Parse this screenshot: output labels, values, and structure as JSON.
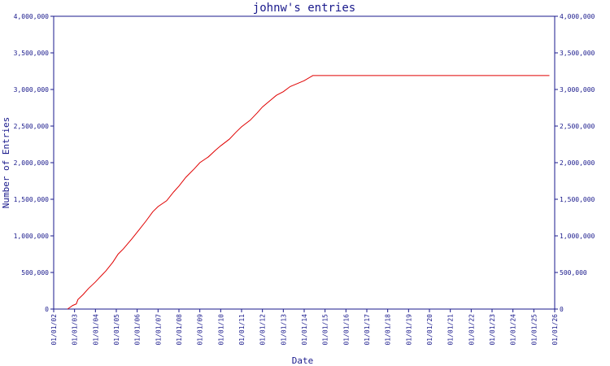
{
  "chart_data": {
    "type": "line",
    "title": "johnw's entries",
    "xlabel": "Date",
    "ylabel": "Number of Entries",
    "ylim": [
      0,
      4000000
    ],
    "xlim": [
      "2002-01-01",
      "2026-01-01"
    ],
    "y_ticks": [
      "0",
      "500,000",
      "1,000,000",
      "1,500,000",
      "2,000,000",
      "2,500,000",
      "3,000,000",
      "3,500,000",
      "4,000,000"
    ],
    "x_ticks": [
      "01/01/02",
      "01/01/03",
      "01/01/04",
      "01/01/05",
      "01/01/06",
      "01/01/07",
      "01/01/08",
      "01/01/09",
      "01/01/10",
      "01/01/11",
      "01/01/12",
      "01/01/13",
      "01/01/14",
      "01/01/15",
      "01/01/16",
      "01/01/17",
      "01/01/18",
      "01/01/19",
      "01/01/20",
      "01/01/21",
      "01/01/22",
      "01/01/23",
      "01/01/24",
      "01/01/25",
      "01/01/26"
    ],
    "grid": false,
    "right_axis": true,
    "colors": {
      "line": "#e00000",
      "axes": "#1a1a8c"
    },
    "series": [
      {
        "x": [
          "2002-09-01",
          "2002-12-01",
          "2003-02-01",
          "2003-03-01",
          "2003-06-01",
          "2003-09-01",
          "2004-01-01",
          "2004-03-01",
          "2004-07-01",
          "2004-11-01",
          "2005-02-01",
          "2005-05-01",
          "2005-10-01",
          "2006-02-01",
          "2006-06-01",
          "2006-10-01",
          "2007-01-01",
          "2007-06-01",
          "2007-10-01",
          "2008-01-01",
          "2008-05-01",
          "2008-10-01",
          "2009-01-01",
          "2009-06-01",
          "2009-10-01",
          "2010-01-01",
          "2010-06-01",
          "2010-10-01",
          "2011-01-01",
          "2011-06-01",
          "2011-10-01",
          "2012-01-01",
          "2012-06-01",
          "2012-09-01",
          "2013-01-01",
          "2013-05-01",
          "2013-09-01",
          "2014-01-01",
          "2014-06-01",
          "2025-10-01"
        ],
        "y": [
          0,
          50000,
          70000,
          130000,
          200000,
          280000,
          370000,
          420000,
          520000,
          640000,
          750000,
          820000,
          960000,
          1080000,
          1200000,
          1330000,
          1400000,
          1480000,
          1600000,
          1680000,
          1800000,
          1920000,
          2000000,
          2080000,
          2170000,
          2230000,
          2320000,
          2420000,
          2490000,
          2580000,
          2680000,
          2760000,
          2860000,
          2920000,
          2970000,
          3040000,
          3080000,
          3120000,
          3190000,
          3190000
        ]
      }
    ]
  }
}
